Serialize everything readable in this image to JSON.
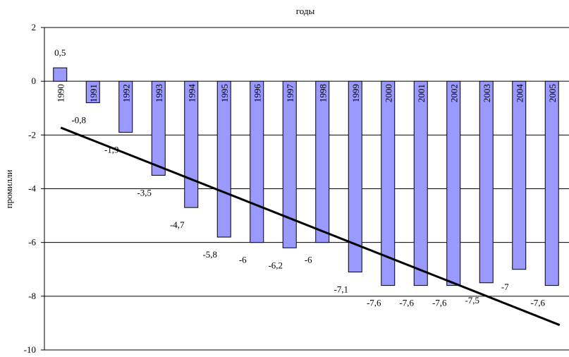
{
  "chart_data": {
    "type": "bar",
    "title": "годы",
    "ylabel": "промилли",
    "xlabel": "",
    "ylim": [
      -10,
      2
    ],
    "yticks": [
      2,
      0,
      -2,
      -4,
      -6,
      -8,
      -10
    ],
    "grid": true,
    "legend": "none",
    "categories": [
      "1990",
      "1991",
      "1992",
      "1993",
      "1994",
      "1995",
      "1996",
      "1997",
      "1998",
      "1999",
      "2000",
      "2001",
      "2002",
      "2003",
      "2004",
      "2005"
    ],
    "values": [
      0.5,
      -0.8,
      -1.9,
      -3.5,
      -4.7,
      -5.8,
      -6,
      -6.2,
      -6,
      -7.1,
      -7.6,
      -7.6,
      -7.6,
      -7.5,
      -7,
      -7.6
    ],
    "data_labels": [
      "0,5",
      "-0,8",
      "-1,9",
      "-3,5",
      "-4,7",
      "-5,8",
      "-6",
      "-6,2",
      "-6",
      "-7,1",
      "-7,6",
      "-7,6",
      "-7,6",
      "-7,5",
      "-7",
      "-7,6"
    ],
    "trendline": {
      "type": "linear",
      "color": "#000000"
    },
    "colors": {
      "bar_fill": "#9999ff",
      "bar_stroke": "#000000",
      "grid": "#000000"
    }
  }
}
